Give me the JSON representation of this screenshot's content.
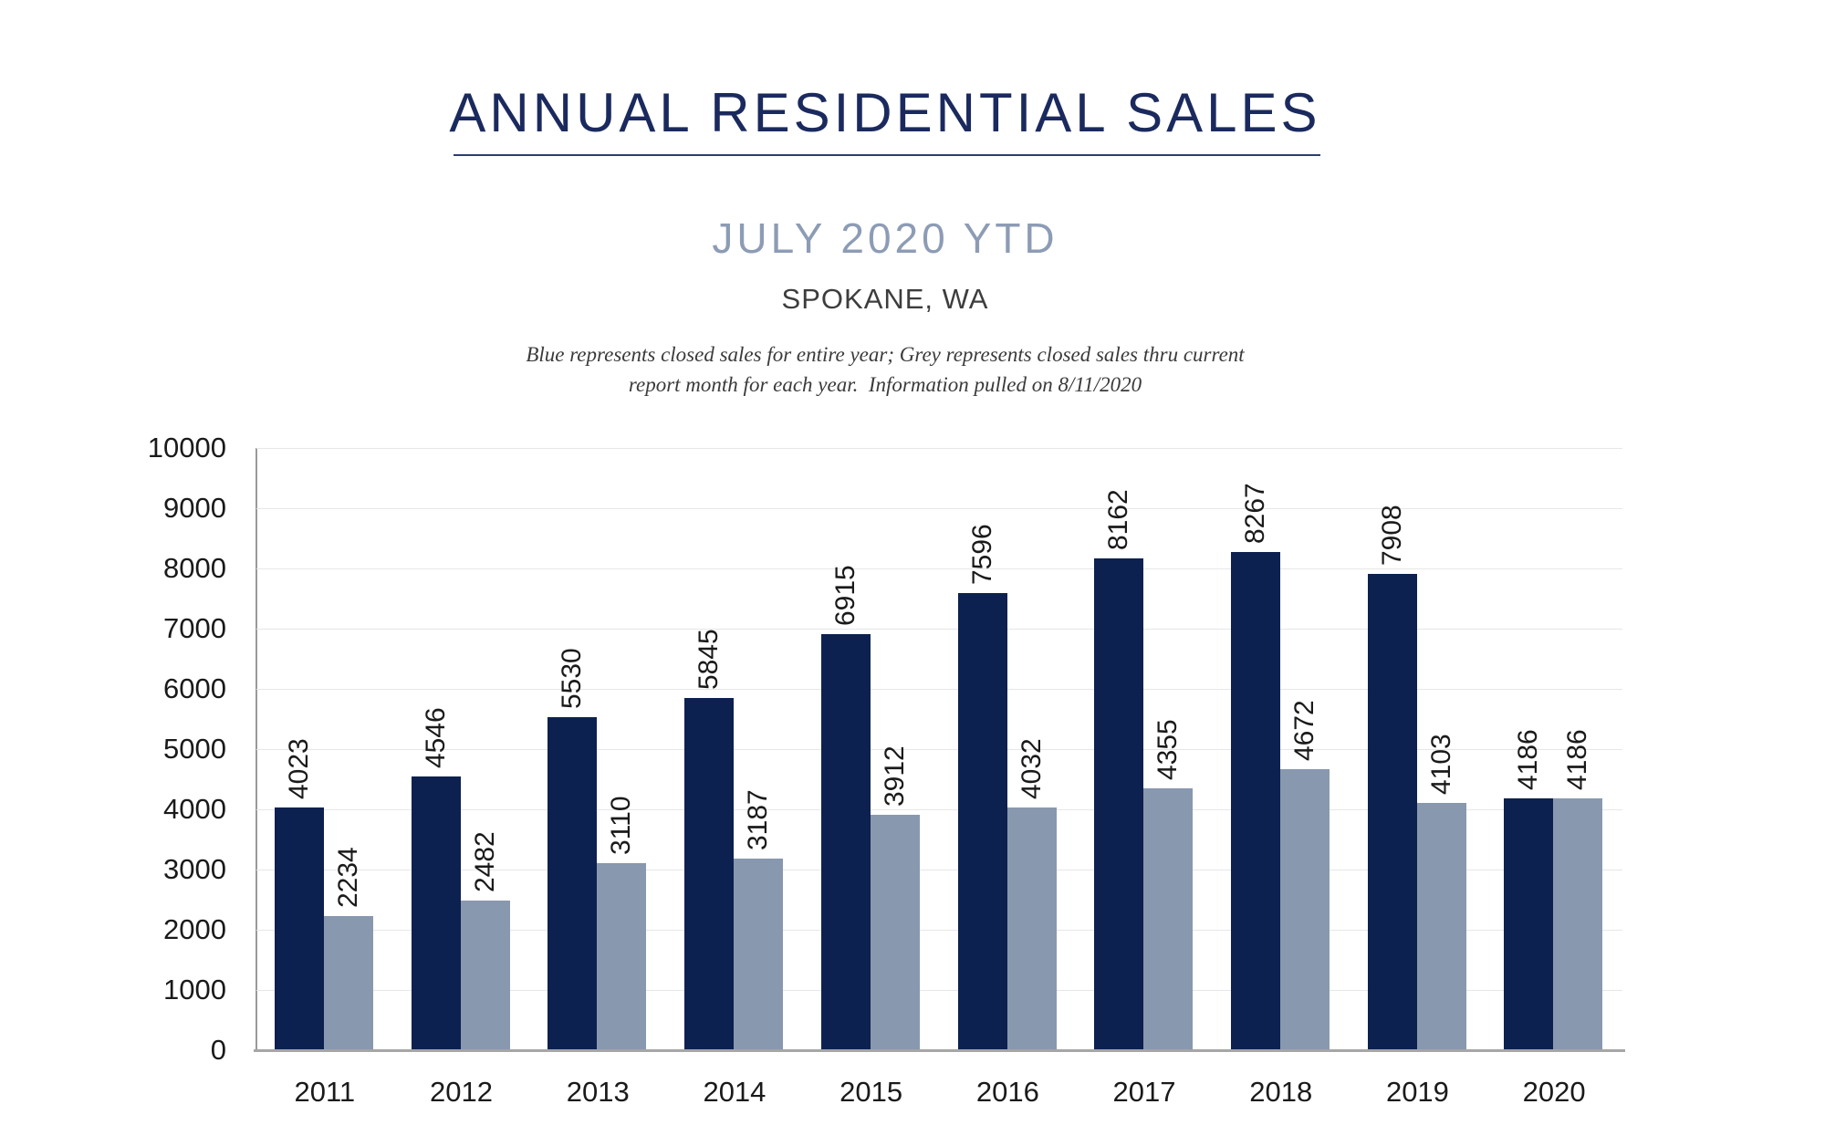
{
  "header": {
    "title": "ANNUAL RESIDENTIAL SALES",
    "subtitle": "JULY 2020 YTD",
    "location": "SPOKANE, WA",
    "note_line1": "Blue represents closed sales for entire year; Grey represents closed sales thru current",
    "note_line2": "report month for each year.  Information pulled on 8/11/2020"
  },
  "colors": {
    "full_year_bar": "#0c2150",
    "ytd_bar": "#8898ae",
    "title_text": "#1b2a5e",
    "subtitle_text": "#8d9cb5",
    "gridline": "#e7e7e7",
    "axis_line": "#a6a6a6",
    "label_text": "#1a1a1a"
  },
  "chart_data": {
    "type": "bar",
    "title": "ANNUAL RESIDENTIAL SALES — JULY 2020 YTD — SPOKANE, WA",
    "categories": [
      "2011",
      "2012",
      "2013",
      "2014",
      "2015",
      "2016",
      "2017",
      "2018",
      "2019",
      "2020"
    ],
    "series": [
      {
        "name": "closed_sales_entire_year",
        "color_key": "full_year_bar",
        "values": [
          4023,
          4546,
          5530,
          5845,
          6915,
          7596,
          8162,
          8267,
          7908,
          4186
        ]
      },
      {
        "name": "closed_sales_thru_report_month",
        "color_key": "ytd_bar",
        "values": [
          2234,
          2482,
          3110,
          3187,
          3912,
          4032,
          4355,
          4672,
          4103,
          4186
        ]
      }
    ],
    "xlabel": "",
    "ylabel": "",
    "ylim": [
      0,
      10000
    ],
    "yticks": [
      0,
      1000,
      2000,
      3000,
      4000,
      5000,
      6000,
      7000,
      8000,
      9000,
      10000
    ],
    "grid": true,
    "legend_position": "none",
    "bar_value_labels": "rotated 90 degrees above bars"
  }
}
